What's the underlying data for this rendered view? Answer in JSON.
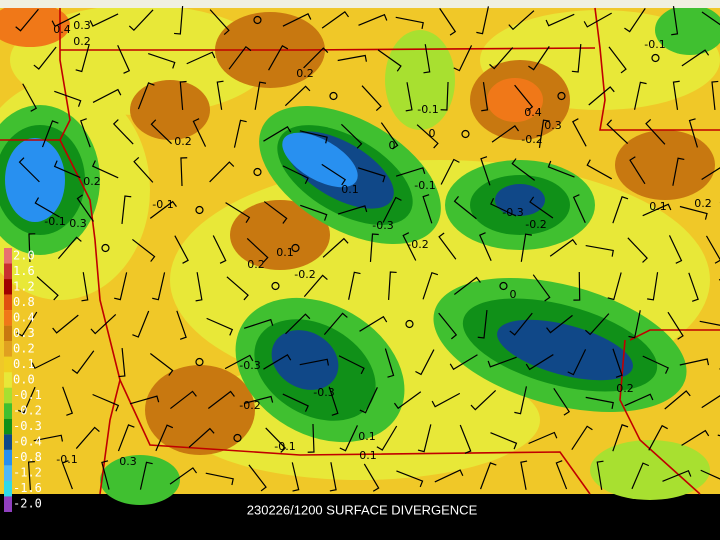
{
  "title": "230226/1200 SURFACE DIVERGENCE",
  "legend": {
    "labels": [
      "2.0",
      "1.6",
      "1.2",
      "0.8",
      "0.4",
      "0.3",
      "0.2",
      "0.1",
      "0.0",
      "-0.1",
      "-0.2",
      "-0.3",
      "-0.4",
      "-0.8",
      "-1.2",
      "-1.6",
      "-2.0"
    ],
    "colors": [
      "#e87070",
      "#c83030",
      "#a00000",
      "#e05010",
      "#f07818",
      "#c87810",
      "#e0a020",
      "#f0d020",
      "#e8e838",
      "#a8e030",
      "#40c030",
      "#109018",
      "#104888",
      "#2890f0",
      "#50b8f8",
      "#30d8e8",
      "#9040c0"
    ]
  },
  "contour_labels": [
    "0.4",
    "0.3",
    "0.2",
    "0.2",
    "-0.1",
    "-0.1",
    "0",
    "0.4",
    "0.3",
    "-0.2",
    "0.2",
    "0",
    "0.2",
    "-0.1",
    "0.1",
    "-0.1",
    "0.2",
    "0.1",
    "-0.3",
    "-0.2",
    "-0.3",
    "-0.2",
    "-0.1",
    "0.3",
    "0.1",
    "0.2",
    "-0.2",
    "0",
    "-0.3",
    "-0.3",
    "0.2",
    "-0.2",
    "0.1",
    "-0.1",
    "0.1",
    "-0.1",
    "0.3"
  ]
}
